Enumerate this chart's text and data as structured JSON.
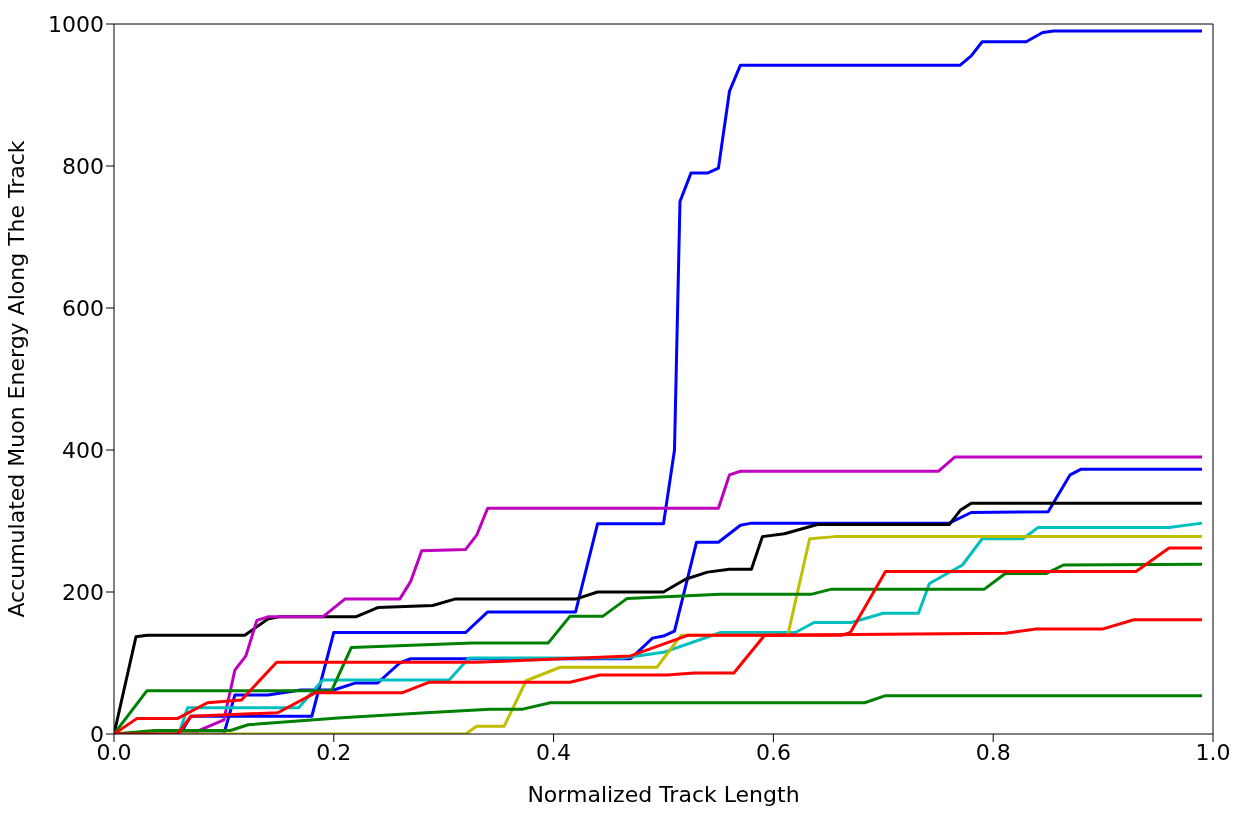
{
  "chart_data": {
    "type": "line",
    "xlabel": "Normalized Track Length",
    "ylabel": "Accumulated Muon Energy Along The Track",
    "xlim": [
      0,
      1
    ],
    "ylim": [
      0,
      1000
    ],
    "xticks": [
      {
        "value": 0,
        "label": "0.0"
      },
      {
        "value": 0.2,
        "label": "0.2"
      },
      {
        "value": 0.4,
        "label": "0.4"
      },
      {
        "value": 0.6,
        "label": "0.6"
      },
      {
        "value": 0.8,
        "label": "0.8"
      },
      {
        "value": 1,
        "label": "1.0"
      }
    ],
    "yticks": [
      0,
      200,
      400,
      600,
      800,
      1000
    ],
    "grid": false,
    "marker": "none",
    "line_style": "solid",
    "series": [
      {
        "color": "#0000ff",
        "x": [
          0,
          0.06,
          0.07,
          0.18,
          0.2,
          0.32,
          0.34,
          0.42,
          0.44,
          0.5,
          0.51,
          0.515,
          0.525,
          0.54,
          0.55,
          0.56,
          0.57,
          0.77,
          0.78,
          0.79,
          0.83,
          0.845,
          0.855,
          0.99
        ],
        "values": [
          0,
          0,
          25,
          25,
          143,
          143,
          172,
          172,
          296,
          296,
          400,
          750,
          790,
          790,
          797,
          905,
          942,
          942,
          955,
          975,
          975,
          988,
          990,
          990
        ]
      },
      {
        "color": "#0000ff",
        "x": [
          0,
          0.1,
          0.11,
          0.14,
          0.17,
          0.2,
          0.22,
          0.24,
          0.26,
          0.27,
          0.47,
          0.49,
          0.5,
          0.51,
          0.53,
          0.55,
          0.57,
          0.58,
          0.76,
          0.78,
          0.85,
          0.87,
          0.88,
          0.99
        ],
        "values": [
          0,
          0,
          55,
          55,
          62,
          62,
          72,
          72,
          100,
          106,
          106,
          135,
          138,
          145,
          270,
          270,
          294,
          297,
          297,
          312,
          313,
          365,
          373,
          373
        ]
      },
      {
        "color": "#000000",
        "x": [
          0,
          0.02,
          0.03,
          0.119,
          0.14,
          0.15,
          0.22,
          0.24,
          0.29,
          0.31,
          0.42,
          0.44,
          0.5,
          0.52,
          0.54,
          0.56,
          0.58,
          0.59,
          0.61,
          0.64,
          0.76,
          0.77,
          0.78,
          0.99
        ],
        "values": [
          0,
          137,
          139,
          139,
          162,
          165,
          165,
          178,
          181,
          190,
          190,
          200,
          200,
          218,
          228,
          232,
          232,
          278,
          282,
          295,
          295,
          315,
          325,
          325
        ]
      },
      {
        "color": "#bf00bf",
        "x": [
          0,
          0.07,
          0.1,
          0.11,
          0.12,
          0.13,
          0.14,
          0.19,
          0.21,
          0.26,
          0.27,
          0.28,
          0.32,
          0.33,
          0.34,
          0.55,
          0.56,
          0.57,
          0.75,
          0.765,
          0.99
        ],
        "values": [
          0,
          0,
          20,
          90,
          110,
          160,
          165,
          165,
          190,
          190,
          215,
          258,
          260,
          280,
          318,
          318,
          365,
          370,
          370,
          390,
          390
        ]
      },
      {
        "color": "#00bfbf",
        "x": [
          0,
          0.06,
          0.067,
          0.168,
          0.19,
          0.305,
          0.323,
          0.463,
          0.5,
          0.552,
          0.62,
          0.637,
          0.671,
          0.7,
          0.732,
          0.742,
          0.772,
          0.79,
          0.827,
          0.841,
          0.96,
          0.99
        ],
        "values": [
          0,
          5,
          37,
          37,
          76,
          76,
          107,
          107,
          115,
          143,
          143,
          157,
          157,
          170,
          170,
          212,
          238,
          275,
          275,
          291,
          291,
          297
        ]
      },
      {
        "color": "#bfbf00",
        "x": [
          0,
          0.32,
          0.33,
          0.355,
          0.375,
          0.406,
          0.494,
          0.516,
          0.613,
          0.633,
          0.656,
          0.99
        ],
        "values": [
          0,
          0,
          11,
          11,
          75,
          94,
          94,
          139,
          139,
          275,
          278,
          278
        ]
      },
      {
        "color": "#008000",
        "x": [
          0,
          0.03,
          0.198,
          0.216,
          0.326,
          0.395,
          0.415,
          0.445,
          0.467,
          0.552,
          0.635,
          0.653,
          0.792,
          0.811,
          0.848,
          0.864,
          0.99
        ],
        "values": [
          0,
          61,
          61,
          122,
          128,
          128,
          166,
          166,
          191,
          197,
          197,
          204,
          204,
          226,
          226,
          238,
          239
        ]
      },
      {
        "color": "#008000",
        "x": [
          0,
          0.037,
          0.106,
          0.122,
          0.207,
          0.284,
          0.342,
          0.372,
          0.397,
          0.683,
          0.702,
          0.99
        ],
        "values": [
          0,
          5,
          5,
          13,
          23,
          30,
          35,
          35,
          44,
          44,
          54,
          54
        ]
      },
      {
        "color": "#ff0000",
        "x": [
          0,
          0.021,
          0.058,
          0.085,
          0.116,
          0.148,
          0.33,
          0.47,
          0.522,
          0.662,
          0.67,
          0.702,
          0.93,
          0.96,
          0.99
        ],
        "values": [
          0,
          22,
          22,
          44,
          48,
          101,
          101,
          110,
          139,
          139,
          143,
          229,
          229,
          262,
          262
        ]
      },
      {
        "color": "#ff0000",
        "x": [
          0,
          0.058,
          0.07,
          0.149,
          0.183,
          0.262,
          0.287,
          0.415,
          0.442,
          0.503,
          0.528,
          0.564,
          0.592,
          0.811,
          0.839,
          0.9,
          0.928,
          0.99
        ],
        "values": [
          0,
          0,
          25,
          30,
          58,
          58,
          73,
          73,
          83,
          83,
          86,
          86,
          139,
          142,
          148,
          148,
          161,
          161
        ]
      }
    ]
  }
}
